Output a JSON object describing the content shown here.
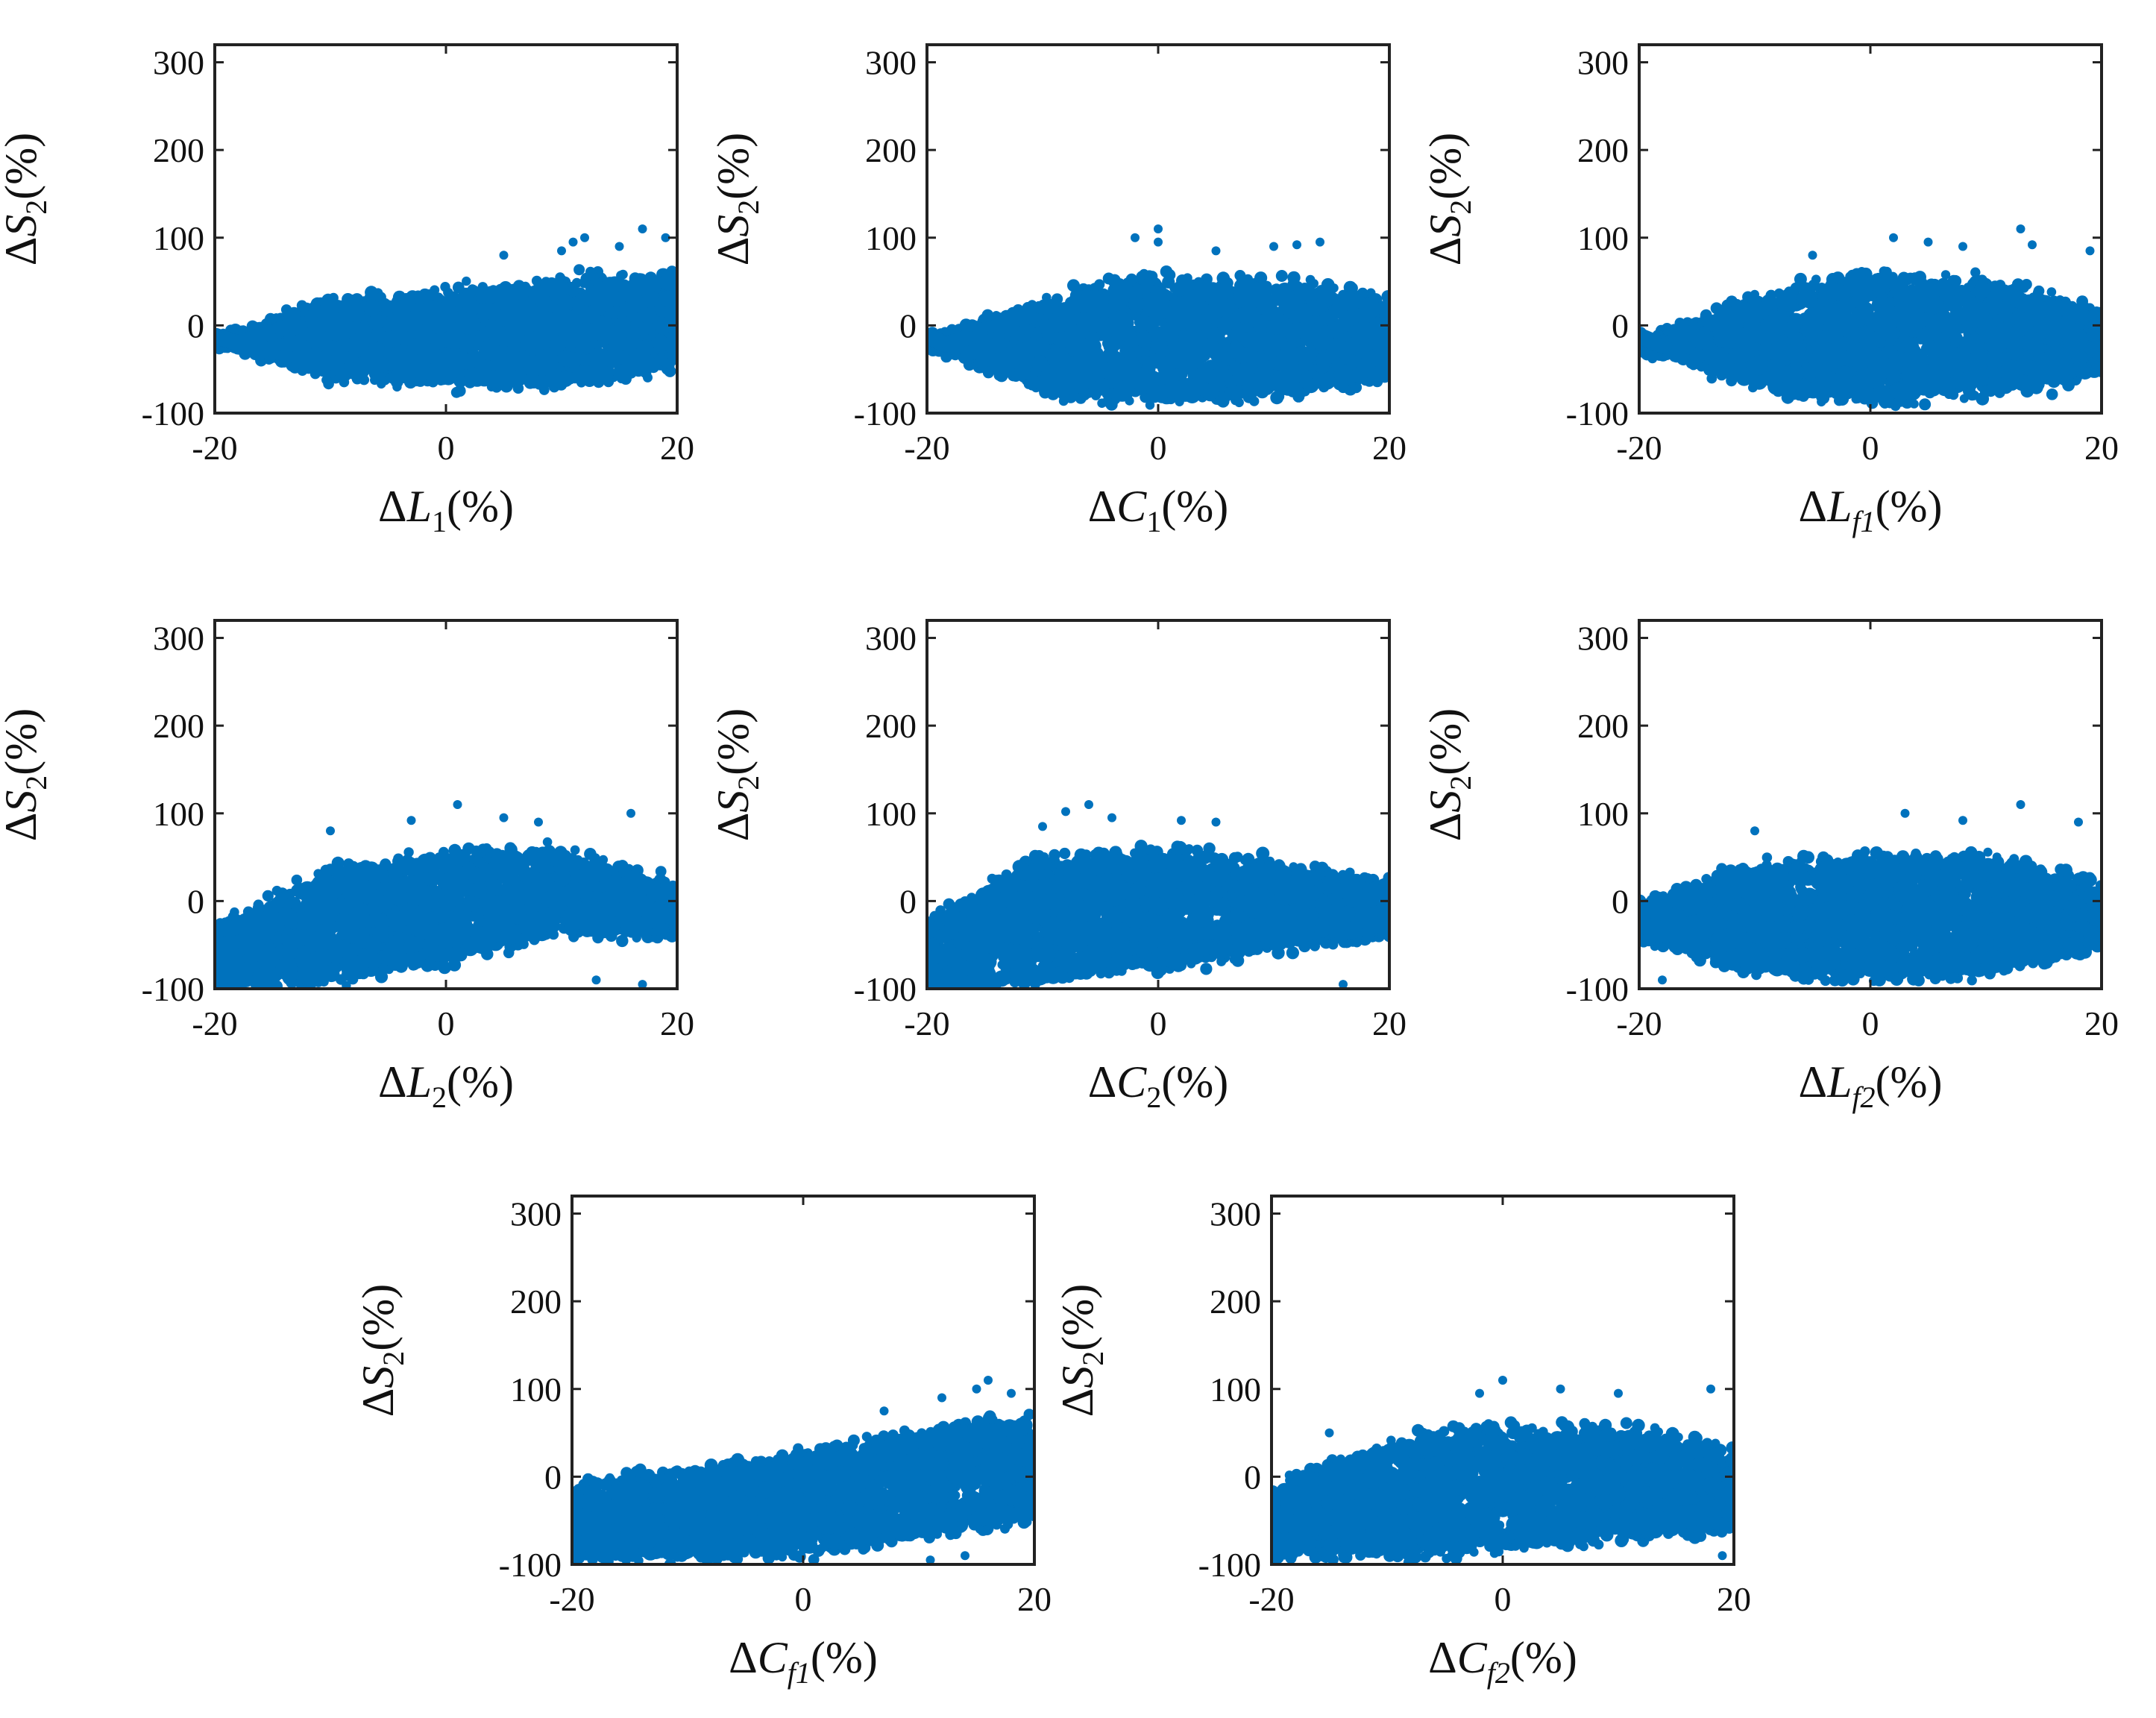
{
  "colors": {
    "marker": "#0072bd",
    "axes": "#222222",
    "background": "#ffffff"
  },
  "chart_data": [
    {
      "type": "scatter",
      "xlabel": "ΔL1(%)",
      "xlabel_base": "ΔL",
      "xlabel_sub": "1",
      "ylabel": "ΔS2(%)",
      "ylabel_base": "ΔS",
      "ylabel_sub": "2",
      "xlim": [
        -20,
        20
      ],
      "ylim": [
        -100,
        320
      ],
      "xticks": [
        "-20",
        "0",
        "20"
      ],
      "yticks": [
        "-100",
        "0",
        "100",
        "200",
        "300"
      ],
      "xtick_values": [
        -20,
        0,
        20
      ],
      "ytick_values": [
        -100,
        0,
        100,
        200,
        300
      ],
      "trend": "linear",
      "center": [
        -20,
        -5,
        0,
        10,
        20
      ],
      "upper": [
        -20,
        30,
        40,
        55,
        60
      ],
      "lower": [
        -20,
        -60,
        -70,
        -70,
        -50
      ],
      "outliers": [
        [
          11,
          95
        ],
        [
          12,
          100
        ],
        [
          15,
          90
        ],
        [
          17,
          110
        ],
        [
          5,
          80
        ],
        [
          10,
          85
        ],
        [
          19,
          100
        ]
      ]
    },
    {
      "type": "scatter",
      "xlabel": "ΔC1(%)",
      "xlabel_base": "ΔC",
      "xlabel_sub": "1",
      "ylabel": "ΔS2(%)",
      "ylabel_base": "ΔS",
      "ylabel_sub": "2",
      "xlim": [
        -20,
        20
      ],
      "ylim": [
        -100,
        320
      ],
      "xticks": [
        "-20",
        "0",
        "20"
      ],
      "yticks": [
        "-100",
        "0",
        "100",
        "200",
        "300"
      ],
      "xtick_values": [
        -20,
        0,
        20
      ],
      "ytick_values": [
        -100,
        0,
        100,
        200,
        300
      ],
      "trend": "arch",
      "center": [
        -20,
        0,
        5,
        0,
        -20
      ],
      "upper": [
        -20,
        30,
        60,
        55,
        30
      ],
      "lower": [
        -20,
        -80,
        -90,
        -85,
        -60
      ],
      "outliers": [
        [
          0,
          110
        ],
        [
          0,
          95
        ],
        [
          5,
          85
        ],
        [
          10,
          90
        ],
        [
          12,
          92
        ],
        [
          14,
          95
        ],
        [
          -2,
          100
        ]
      ]
    },
    {
      "type": "scatter",
      "xlabel": "ΔLf1(%)",
      "xlabel_base": "ΔL",
      "xlabel_sub": "f1",
      "ylabel": "ΔS2(%)",
      "ylabel_base": "ΔS",
      "ylabel_sub": "2",
      "xlim": [
        -20,
        20
      ],
      "ylim": [
        -100,
        320
      ],
      "xticks": [
        "-20",
        "0",
        "20"
      ],
      "yticks": [
        "-100",
        "0",
        "100",
        "200",
        "300"
      ],
      "xtick_values": [
        -20,
        0,
        20
      ],
      "ytick_values": [
        -100,
        0,
        100,
        200,
        300
      ],
      "trend": "arch",
      "center": [
        -20,
        -5,
        0,
        -5,
        -10
      ],
      "upper": [
        -20,
        35,
        60,
        55,
        20
      ],
      "lower": [
        -20,
        -75,
        -90,
        -80,
        -60
      ],
      "outliers": [
        [
          13,
          110
        ],
        [
          2,
          100
        ],
        [
          5,
          95
        ],
        [
          8,
          90
        ],
        [
          14,
          92
        ],
        [
          19,
          85
        ],
        [
          -5,
          80
        ]
      ]
    },
    {
      "type": "scatter",
      "xlabel": "ΔL2(%)",
      "xlabel_base": "ΔL",
      "xlabel_sub": "2",
      "ylabel": "ΔS2(%)",
      "ylabel_base": "ΔS",
      "ylabel_sub": "2",
      "xlim": [
        -20,
        20
      ],
      "ylim": [
        -100,
        320
      ],
      "xticks": [
        "-20",
        "0",
        "20"
      ],
      "yticks": [
        "-100",
        "0",
        "100",
        "200",
        "300"
      ],
      "xtick_values": [
        -20,
        0,
        20
      ],
      "ytick_values": [
        -100,
        0,
        100,
        200,
        300
      ],
      "trend": "arch",
      "center": [
        -80,
        -25,
        0,
        5,
        -10
      ],
      "upper": [
        -30,
        40,
        60,
        60,
        20
      ],
      "lower": [
        -100,
        -95,
        -70,
        -40,
        -40
      ],
      "outliers": [
        [
          1,
          110
        ],
        [
          16,
          100
        ],
        [
          5,
          95
        ],
        [
          -3,
          92
        ],
        [
          8,
          90
        ],
        [
          -10,
          80
        ],
        [
          13,
          -90
        ],
        [
          17,
          -95
        ]
      ]
    },
    {
      "type": "scatter",
      "xlabel": "ΔC2(%)",
      "xlabel_base": "ΔC",
      "xlabel_sub": "2",
      "ylabel": "ΔS2(%)",
      "ylabel_base": "ΔS",
      "ylabel_sub": "2",
      "xlim": [
        -20,
        20
      ],
      "ylim": [
        -100,
        320
      ],
      "xticks": [
        "-20",
        "0",
        "20"
      ],
      "yticks": [
        "-100",
        "0",
        "100",
        "200",
        "300"
      ],
      "xtick_values": [
        -20,
        0,
        20
      ],
      "ytick_values": [
        -100,
        0,
        100,
        200,
        300
      ],
      "trend": "arch",
      "center": [
        -60,
        -10,
        0,
        0,
        -10
      ],
      "upper": [
        -20,
        55,
        60,
        45,
        20
      ],
      "lower": [
        -100,
        -95,
        -80,
        -55,
        -40
      ],
      "outliers": [
        [
          -6,
          110
        ],
        [
          -8,
          102
        ],
        [
          -4,
          95
        ],
        [
          2,
          92
        ],
        [
          5,
          90
        ],
        [
          -10,
          85
        ],
        [
          16,
          -95
        ]
      ]
    },
    {
      "type": "scatter",
      "xlabel": "ΔLf2(%)",
      "xlabel_base": "ΔL",
      "xlabel_sub": "f2",
      "ylabel": "ΔS2(%)",
      "ylabel_base": "ΔS",
      "ylabel_sub": "2",
      "xlim": [
        -20,
        20
      ],
      "ylim": [
        -100,
        320
      ],
      "xticks": [
        "-20",
        "0",
        "20"
      ],
      "yticks": [
        "-100",
        "0",
        "100",
        "200",
        "300"
      ],
      "xtick_values": [
        -20,
        0,
        20
      ],
      "ytick_values": [
        -100,
        0,
        100,
        200,
        300
      ],
      "trend": "arch",
      "center": [
        -15,
        -10,
        -5,
        -10,
        -15
      ],
      "upper": [
        0,
        40,
        55,
        55,
        20
      ],
      "lower": [
        -40,
        -85,
        -90,
        -85,
        -50
      ],
      "outliers": [
        [
          13,
          110
        ],
        [
          3,
          100
        ],
        [
          8,
          92
        ],
        [
          -10,
          80
        ],
        [
          18,
          90
        ],
        [
          -18,
          -90
        ]
      ]
    },
    {
      "type": "scatter",
      "xlabel": "ΔCf1(%)",
      "xlabel_base": "ΔC",
      "xlabel_sub": "f1",
      "ylabel": "ΔS2(%)",
      "ylabel_base": "ΔS",
      "ylabel_sub": "2",
      "xlim": [
        -20,
        20
      ],
      "ylim": [
        -100,
        320
      ],
      "xticks": [
        "-20",
        "0",
        "20"
      ],
      "yticks": [
        "-100",
        "0",
        "100",
        "200",
        "300"
      ],
      "xtick_values": [
        -20,
        0,
        20
      ],
      "ytick_values": [
        -100,
        0,
        100,
        200,
        300
      ],
      "trend": "linear",
      "center": [
        -40,
        -30,
        -10,
        10,
        20
      ],
      "upper": [
        -10,
        10,
        30,
        55,
        70
      ],
      "lower": [
        -95,
        -95,
        -90,
        -70,
        -50
      ],
      "outliers": [
        [
          16,
          110
        ],
        [
          15,
          100
        ],
        [
          18,
          95
        ],
        [
          12,
          90
        ],
        [
          7,
          75
        ],
        [
          14,
          -90
        ],
        [
          11,
          -95
        ]
      ]
    },
    {
      "type": "scatter",
      "xlabel": "ΔCf2(%)",
      "xlabel_base": "ΔC",
      "xlabel_sub": "f2",
      "ylabel": "ΔS2(%)",
      "ylabel_base": "ΔS",
      "ylabel_sub": "2",
      "xlim": [
        -20,
        20
      ],
      "ylim": [
        -100,
        320
      ],
      "xticks": [
        "-20",
        "0",
        "20"
      ],
      "yticks": [
        "-100",
        "0",
        "100",
        "200",
        "300"
      ],
      "xtick_values": [
        -20,
        0,
        20
      ],
      "ytick_values": [
        -100,
        0,
        100,
        200,
        300
      ],
      "trend": "arch",
      "center": [
        -30,
        -10,
        0,
        0,
        -5
      ],
      "upper": [
        -10,
        40,
        60,
        60,
        30
      ],
      "lower": [
        -90,
        -95,
        -85,
        -75,
        -60
      ],
      "outliers": [
        [
          0,
          110
        ],
        [
          5,
          100
        ],
        [
          10,
          95
        ],
        [
          18,
          100
        ],
        [
          -2,
          95
        ],
        [
          -15,
          50
        ],
        [
          19,
          -90
        ]
      ]
    }
  ]
}
